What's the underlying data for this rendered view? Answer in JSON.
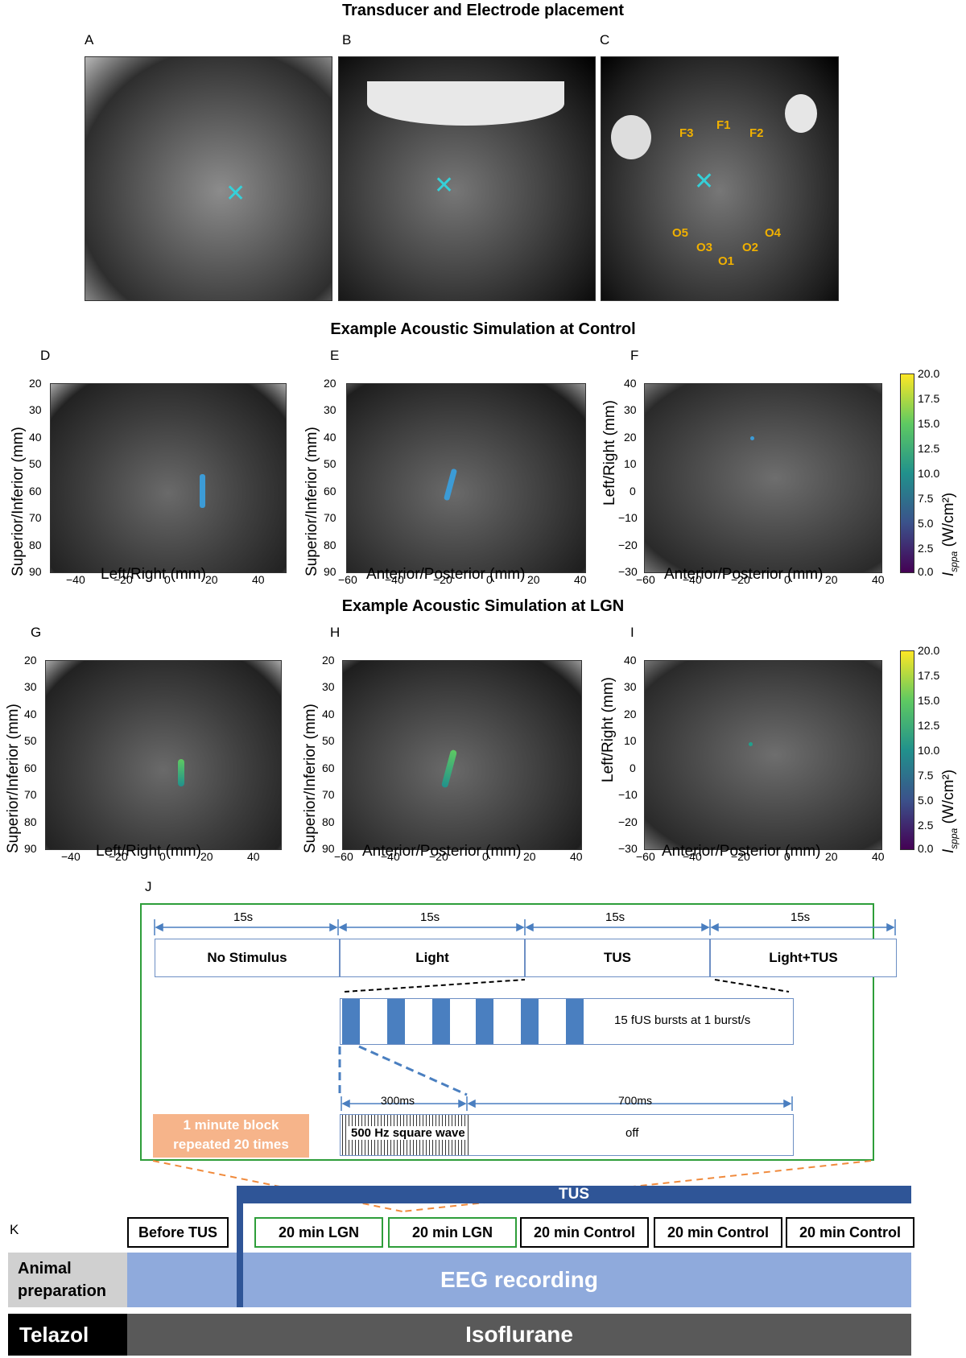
{
  "titles": {
    "placement": "Transducer and Electrode placement",
    "control": "Example Acoustic Simulation at Control",
    "lgn": "Example Acoustic Simulation at LGN"
  },
  "panels": {
    "A": "A",
    "B": "B",
    "C": "C",
    "D": "D",
    "E": "E",
    "F": "F",
    "G": "G",
    "H": "H",
    "I": "I",
    "J": "J",
    "K": "K"
  },
  "electrodes": [
    "F3",
    "F1",
    "F2",
    "O5",
    "O3",
    "O1",
    "O2",
    "O4"
  ],
  "axes": {
    "left_right": "Left/Right (mm)",
    "superior_inferior": "Superior/Inferior (mm)",
    "anterior_posterior": "Anterior/Posterior (mm)",
    "isppa": "I",
    "isppa_sub": "sppa",
    "isppa_unit": "(W/cm²)"
  },
  "ticks": {
    "lr_x": [
      "−40",
      "−20",
      "0",
      "20",
      "40"
    ],
    "si_y": [
      "20",
      "30",
      "40",
      "50",
      "60",
      "70",
      "80",
      "90"
    ],
    "ap_x": [
      "−60",
      "−40",
      "−20",
      "0",
      "20",
      "40"
    ],
    "lr_y": [
      "40",
      "30",
      "20",
      "10",
      "0",
      "−10",
      "−20",
      "−30"
    ],
    "cbar": [
      "20.0",
      "17.5",
      "15.0",
      "12.5",
      "10.0",
      "7.5",
      "5.0",
      "2.5",
      "0.0"
    ]
  },
  "protocol": {
    "durations": [
      "15s",
      "15s",
      "15s",
      "15s"
    ],
    "conditions": [
      "No Stimulus",
      "Light",
      "TUS",
      "Light+TUS"
    ],
    "bursts": "15 fUS bursts at 1 burst/s",
    "on_ms": "300ms",
    "off_ms": "700ms",
    "square_wave": "500 Hz square wave",
    "off": "off",
    "block_note_line1": "1 minute block",
    "block_note_line2": "repeated 20 times"
  },
  "timeline": {
    "tus": "TUS",
    "segments": [
      "Before TUS",
      "20 min LGN",
      "20 min LGN",
      "20 min Control",
      "20 min Control",
      "20 min Control"
    ],
    "animal_prep_line1": "Animal",
    "animal_prep_line2": "preparation",
    "eeg": "EEG recording",
    "telazol": "Telazol",
    "isoflurane": "Isoflurane"
  }
}
